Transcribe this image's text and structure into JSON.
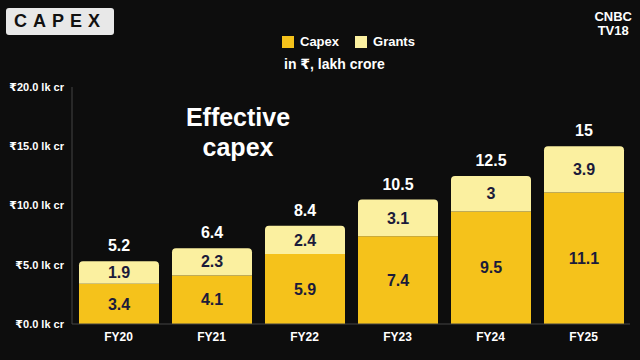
{
  "chart_data": {
    "type": "bar",
    "title": "Effective capex",
    "subtitle": "in ₹, lakh crore",
    "annotations": [
      "CAPEX",
      "CNBC",
      "TV18"
    ],
    "categories": [
      "FY20",
      "FY21",
      "FY22",
      "FY23",
      "FY24",
      "FY25"
    ],
    "series": [
      {
        "name": "Capex",
        "color": "#f5c21b",
        "values": [
          3.4,
          4.1,
          5.9,
          7.4,
          9.5,
          11.1
        ]
      },
      {
        "name": "Grants",
        "color": "#fbf0a0",
        "values": [
          1.9,
          2.3,
          2.4,
          3.1,
          3,
          3.9
        ]
      }
    ],
    "totals": [
      5.2,
      6.4,
      8.4,
      10.5,
      12.5,
      15
    ],
    "stacked": true,
    "data_labels": true,
    "legend": "top",
    "grid": false,
    "ylim": [
      0,
      20
    ],
    "yticks": [
      {
        "value": 0,
        "label": "₹0.0 lk cr"
      },
      {
        "value": 5,
        "label": "₹5.0 lk cr"
      },
      {
        "value": 10,
        "label": "₹10.0 lk cr"
      },
      {
        "value": 15,
        "label": "₹15.0 lk cr"
      },
      {
        "value": 20,
        "label": "₹20.0 lk cr"
      }
    ]
  }
}
